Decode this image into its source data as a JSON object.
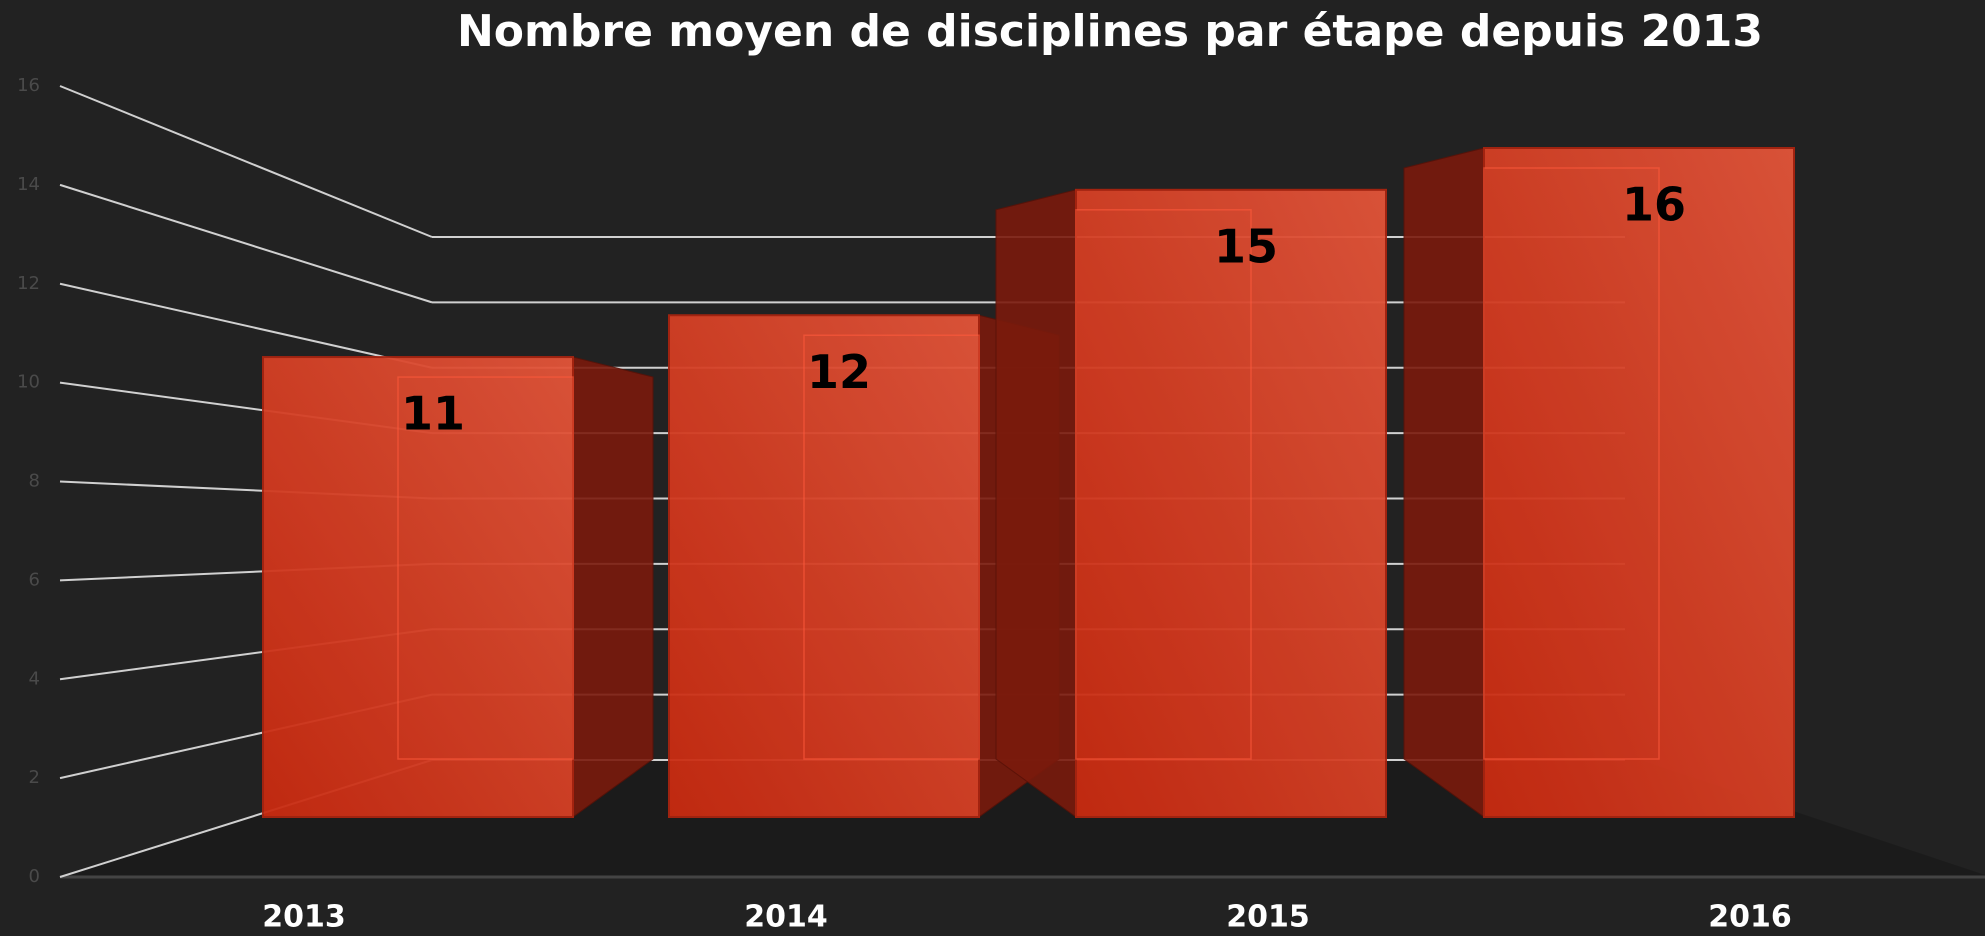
{
  "chart_data": {
    "type": "bar3d",
    "title": "Nombre moyen de disciplines par étape depuis 2013",
    "categories": [
      "2013",
      "2014",
      "2015",
      "2016"
    ],
    "values": [
      11,
      12,
      15,
      16
    ],
    "color": "#d03018",
    "ylim": [
      0,
      16
    ],
    "yticks": [
      0,
      2,
      4,
      6,
      8,
      10,
      12,
      14,
      16
    ],
    "grid": true,
    "data_labels": true
  }
}
